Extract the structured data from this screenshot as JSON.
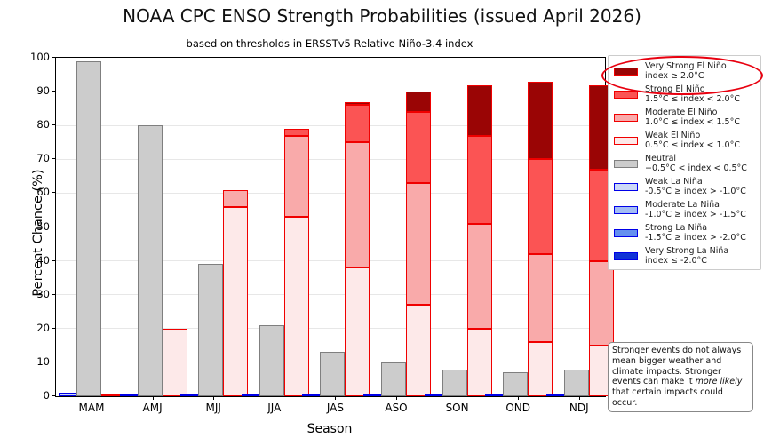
{
  "title": "NOAA CPC ENSO Strength Probabilities (issued April 2026)",
  "subtitle": "based on thresholds in ERSSTv5 Relative Niño-3.4 index",
  "note": {
    "part1": "Stronger events do not always mean bigger weather and climate impacts. Stronger events can make it ",
    "italic_phrase": "more likely",
    "part2": " that certain impacts could occur."
  },
  "chart_data": {
    "type": "bar",
    "variant": "grouped-stacked",
    "title": "NOAA CPC ENSO Strength Probabilities (issued April 2026)",
    "subtitle": "based on thresholds in ERSSTv5 Relative Niño-3.4 index",
    "xlabel": "Season",
    "ylabel": "Percent Chance (%)",
    "ylim": [
      0,
      100
    ],
    "yticks": [
      0,
      10,
      20,
      30,
      40,
      50,
      60,
      70,
      80,
      90,
      100
    ],
    "grid": "horizontal",
    "legend_position": "upper right, outside plot",
    "categories": [
      "MAM",
      "AMJ",
      "MJJ",
      "JJA",
      "JAS",
      "ASO",
      "SON",
      "OND",
      "NDJ"
    ],
    "groups": [
      {
        "name": "la-nina-bar",
        "edge_color": "#0000e8",
        "series": [
          {
            "name": "Weak La Niña",
            "fill": "#cdd9f7",
            "values": [
              1,
              0,
              0,
              0,
              0,
              0,
              0,
              0,
              0
            ]
          },
          {
            "name": "Moderate La Niña",
            "fill": "#a4bdf4",
            "values": [
              0,
              0,
              0,
              0,
              0,
              0,
              0,
              0,
              0
            ]
          },
          {
            "name": "Strong La Niña",
            "fill": "#6590ef",
            "values": [
              0,
              0,
              0,
              0,
              0,
              0,
              0,
              0,
              0
            ]
          },
          {
            "name": "Very Strong La Niña",
            "fill": "#1133d6",
            "values": [
              0,
              0,
              0,
              0,
              0,
              0,
              0,
              0,
              0
            ]
          }
        ]
      },
      {
        "name": "neutral-bar",
        "edge_color": "#7f7f7f",
        "series": [
          {
            "name": "Neutral",
            "fill": "#cccccc",
            "values": [
              99,
              80,
              39,
              21,
              13,
              10,
              8,
              7,
              8
            ]
          }
        ]
      },
      {
        "name": "el-nino-bar",
        "edge_color": "#f00000",
        "series": [
          {
            "name": "Weak El Niño",
            "fill": "#fde9e9",
            "values": [
              0,
              20,
              56,
              53,
              38,
              27,
              20,
              16,
              15
            ]
          },
          {
            "name": "Moderate El Niño",
            "fill": "#f9aaaa",
            "values": [
              0,
              0,
              5,
              24,
              37,
              36,
              31,
              26,
              25
            ]
          },
          {
            "name": "Strong El Niño",
            "fill": "#fb5454",
            "values": [
              0,
              0,
              0,
              2,
              11,
              21,
              26,
              28,
              27
            ]
          },
          {
            "name": "Very Strong El Niño",
            "fill": "#9a0505",
            "values": [
              0,
              0,
              0,
              0,
              1,
              6,
              15,
              23,
              25
            ]
          }
        ]
      }
    ],
    "legend": [
      {
        "label": "Very Strong El Niño",
        "range": "index ≥ 2.0°C",
        "fill": "#9a0505",
        "edge": "#f00000",
        "circled": true
      },
      {
        "label": "Strong El Niño",
        "range": "1.5°C ≤ index < 2.0°C",
        "fill": "#fb5454",
        "edge": "#f00000",
        "circled": false
      },
      {
        "label": "Moderate El Niño",
        "range": "1.0°C ≤ index < 1.5°C",
        "fill": "#f9aaaa",
        "edge": "#f00000",
        "circled": false
      },
      {
        "label": "Weak El Niño",
        "range": "0.5°C ≤ index < 1.0°C",
        "fill": "#fde9e9",
        "edge": "#f00000",
        "circled": false
      },
      {
        "label": "Neutral",
        "range": "−0.5°C < index < 0.5°C",
        "fill": "#cccccc",
        "edge": "#7f7f7f",
        "circled": false
      },
      {
        "label": "Weak La Niña",
        "range": "-0.5°C ≥ index > -1.0°C",
        "fill": "#cdd9f7",
        "edge": "#0000e8",
        "circled": false
      },
      {
        "label": "Moderate La Niña",
        "range": "-1.0°C ≥ index > -1.5°C",
        "fill": "#a4bdf4",
        "edge": "#0000e8",
        "circled": false
      },
      {
        "label": "Strong La Niña",
        "range": "-1.5°C ≥ index > -2.0°C",
        "fill": "#6590ef",
        "edge": "#0000e8",
        "circled": false
      },
      {
        "label": "Very Strong La Niña",
        "range": "index ≤ -2.0°C",
        "fill": "#1133d6",
        "edge": "#0000e8",
        "circled": false
      }
    ],
    "annotation": {
      "shape": "ellipse",
      "color": "#e8000f",
      "target": "legend entry: Very Strong El Niño"
    },
    "note_text": "Stronger events do not always mean bigger weather and climate impacts. Stronger events can make it more likely that certain impacts could occur."
  }
}
